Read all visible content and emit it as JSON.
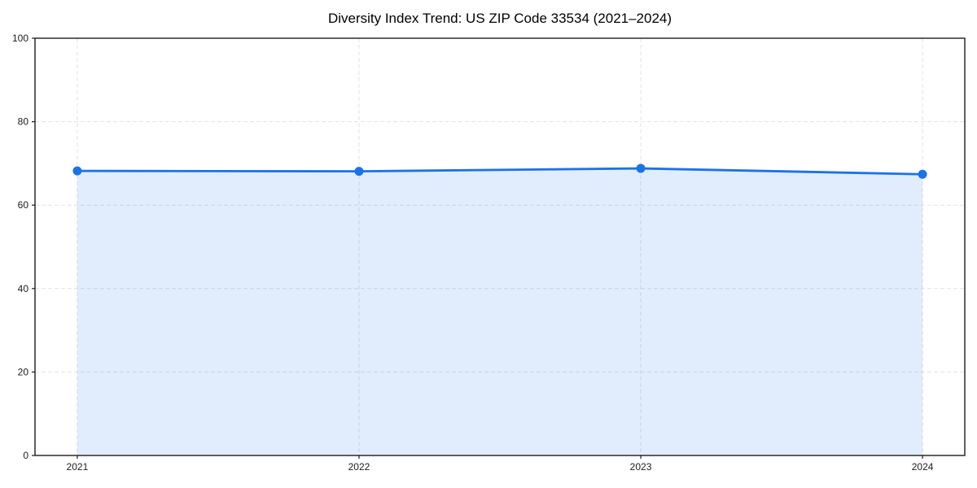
{
  "chart_data": {
    "type": "area",
    "title": "Diversity Index Trend: US ZIP Code 33534 (2021–2024)",
    "x": [
      2021,
      2022,
      2023,
      2024
    ],
    "series": [
      {
        "name": "Diversity Index",
        "values": [
          68.2,
          68.1,
          68.8,
          67.4
        ]
      }
    ],
    "xlabel": "",
    "ylabel": "",
    "ylim": [
      0,
      100
    ],
    "yticks": [
      0,
      20,
      40,
      60,
      80,
      100
    ],
    "xticks": [
      2021,
      2022,
      2023,
      2024
    ],
    "x_margin_fraction": 0.05,
    "grid": true,
    "grid_style": "dashed",
    "legend": false,
    "colors": {
      "line": "#1a73e8",
      "marker": "#1a73e8",
      "fill": "rgba(26,115,232,0.13)",
      "grid": "#e2e2e2",
      "spine": "#1c1c1c",
      "tick_label": "#1c1c1c",
      "title": "#000000"
    }
  }
}
